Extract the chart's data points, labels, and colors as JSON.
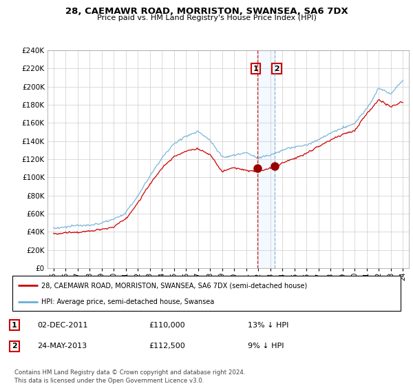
{
  "title": "28, CAEMAWR ROAD, MORRISTON, SWANSEA, SA6 7DX",
  "subtitle": "Price paid vs. HM Land Registry's House Price Index (HPI)",
  "legend_line1": "28, CAEMAWR ROAD, MORRISTON, SWANSEA, SA6 7DX (semi-detached house)",
  "legend_line2": "HPI: Average price, semi-detached house, Swansea",
  "footnote": "Contains HM Land Registry data © Crown copyright and database right 2024.\nThis data is licensed under the Open Government Licence v3.0.",
  "transaction1_date": "02-DEC-2011",
  "transaction1_price": "£110,000",
  "transaction1_hpi": "13% ↓ HPI",
  "transaction2_date": "24-MAY-2013",
  "transaction2_price": "£112,500",
  "transaction2_hpi": "9% ↓ HPI",
  "marker1_x": 2011.92,
  "marker1_y": 110000,
  "marker2_x": 2013.38,
  "marker2_y": 112500,
  "vline1_x": 2011.92,
  "vline2_x": 2013.38,
  "hpi_color": "#6baed6",
  "price_color": "#cc0000",
  "vline2_color": "#6baed6",
  "ylim": [
    0,
    240000
  ],
  "yticks": [
    0,
    20000,
    40000,
    60000,
    80000,
    100000,
    120000,
    140000,
    160000,
    180000,
    200000,
    220000,
    240000
  ],
  "xlim": [
    1994.5,
    2024.5
  ],
  "xtick_years": [
    1995,
    1996,
    1997,
    1998,
    1999,
    2000,
    2001,
    2002,
    2003,
    2004,
    2005,
    2006,
    2007,
    2008,
    2009,
    2010,
    2011,
    2012,
    2013,
    2014,
    2015,
    2016,
    2017,
    2018,
    2019,
    2020,
    2021,
    2022,
    2023,
    2024
  ],
  "background_color": "#ffffff",
  "grid_color": "#cccccc",
  "hpi_segments": [
    [
      1995,
      44000
    ],
    [
      1996,
      45500
    ],
    [
      1997,
      46500
    ],
    [
      1998,
      47500
    ],
    [
      1999,
      49000
    ],
    [
      2000,
      52000
    ],
    [
      2001,
      60000
    ],
    [
      2002,
      78000
    ],
    [
      2003,
      100000
    ],
    [
      2004,
      120000
    ],
    [
      2005,
      135000
    ],
    [
      2006,
      143000
    ],
    [
      2007,
      148000
    ],
    [
      2008,
      138000
    ],
    [
      2009,
      120000
    ],
    [
      2010,
      122000
    ],
    [
      2011,
      125000
    ],
    [
      2012,
      120000
    ],
    [
      2013,
      123000
    ],
    [
      2014,
      128000
    ],
    [
      2015,
      131000
    ],
    [
      2016,
      135000
    ],
    [
      2017,
      140000
    ],
    [
      2018,
      147000
    ],
    [
      2019,
      153000
    ],
    [
      2020,
      158000
    ],
    [
      2021,
      175000
    ],
    [
      2022,
      198000
    ],
    [
      2023,
      192000
    ],
    [
      2024,
      207000
    ]
  ],
  "price_segments": [
    [
      1995,
      38000
    ],
    [
      1996,
      39000
    ],
    [
      1997,
      40000
    ],
    [
      1998,
      41000
    ],
    [
      1999,
      43000
    ],
    [
      2000,
      46000
    ],
    [
      2001,
      55000
    ],
    [
      2002,
      72000
    ],
    [
      2003,
      93000
    ],
    [
      2004,
      110000
    ],
    [
      2005,
      123000
    ],
    [
      2006,
      130000
    ],
    [
      2007,
      133000
    ],
    [
      2008,
      126000
    ],
    [
      2009,
      108000
    ],
    [
      2010,
      113000
    ],
    [
      2011,
      110000
    ],
    [
      2012,
      108000
    ],
    [
      2013,
      112500
    ],
    [
      2014,
      118000
    ],
    [
      2015,
      122000
    ],
    [
      2016,
      128000
    ],
    [
      2017,
      135000
    ],
    [
      2018,
      142000
    ],
    [
      2019,
      148000
    ],
    [
      2020,
      152000
    ],
    [
      2021,
      170000
    ],
    [
      2022,
      185000
    ],
    [
      2023,
      178000
    ],
    [
      2024,
      183000
    ]
  ]
}
